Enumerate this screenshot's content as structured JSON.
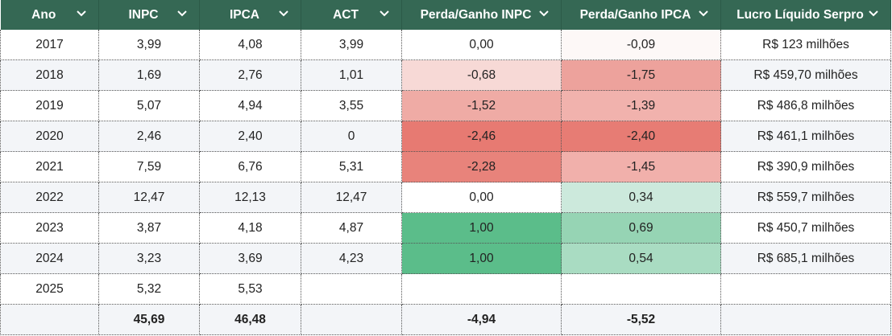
{
  "headers": [
    "Ano",
    "INPC",
    "IPCA",
    "ACT",
    "Perda/Ganho INPC",
    "Perda/Ganho IPCA",
    "Lucro Líquido Serpro"
  ],
  "rows": [
    {
      "cells": [
        "2017",
        "3,99",
        "4,08",
        "3,99",
        "0,00",
        "-0,09",
        "R$ 123 milhões"
      ],
      "colors": [
        "",
        "",
        "",
        "",
        "",
        "#fdf8f7",
        ""
      ]
    },
    {
      "cells": [
        "2018",
        "1,69",
        "2,76",
        "1,01",
        "-0,68",
        "-1,75",
        "R$ 459,70 milhões"
      ],
      "colors": [
        "",
        "",
        "",
        "",
        "#f7d9d6",
        "#eda29c",
        ""
      ]
    },
    {
      "cells": [
        "2019",
        "5,07",
        "4,94",
        "3,55",
        "-1,52",
        "-1,39",
        "R$ 486,8 milhões"
      ],
      "colors": [
        "",
        "",
        "",
        "",
        "#efaba5",
        "#f1b2ad",
        ""
      ]
    },
    {
      "cells": [
        "2020",
        "2,46",
        "2,40",
        "0",
        "-2,46",
        "-2,40",
        "R$ 461,1 milhões"
      ],
      "colors": [
        "",
        "",
        "",
        "",
        "#e77a72",
        "#e77c74",
        ""
      ]
    },
    {
      "cells": [
        "2021",
        "7,59",
        "6,76",
        "5,31",
        "-2,28",
        "-1,45",
        "R$ 390,9 milhões"
      ],
      "colors": [
        "",
        "",
        "",
        "",
        "#e8837b",
        "#f1b0ab",
        ""
      ]
    },
    {
      "cells": [
        "2022",
        "12,47",
        "12,13",
        "12,47",
        "0,00",
        "0,34",
        "R$ 559,7 milhões"
      ],
      "colors": [
        "",
        "",
        "",
        "",
        "#ffffff",
        "#cce9dc",
        ""
      ]
    },
    {
      "cells": [
        "2023",
        "3,87",
        "4,18",
        "4,87",
        "1,00",
        "0,69",
        "R$ 450,7 milhões"
      ],
      "colors": [
        "",
        "",
        "",
        "",
        "#5bbd8a",
        "#96d4b4",
        ""
      ]
    },
    {
      "cells": [
        "2024",
        "3,23",
        "3,69",
        "4,23",
        "1,00",
        "0,54",
        "R$ 685,1 milhões"
      ],
      "colors": [
        "",
        "",
        "",
        "",
        "#5bbd8a",
        "#a9dcc2",
        ""
      ]
    },
    {
      "cells": [
        "2025",
        "5,32",
        "5,53",
        "",
        "",
        "",
        ""
      ],
      "colors": [
        "",
        "",
        "",
        "",
        "",
        "",
        ""
      ]
    },
    {
      "cells": [
        "",
        "45,69",
        "46,48",
        "",
        "-4,94",
        "-5,52",
        ""
      ],
      "colors": [
        "",
        "",
        "",
        "",
        "",
        "",
        ""
      ],
      "total": true
    }
  ],
  "colors": {
    "header_bg": "#356854",
    "header_text": "#ffffff"
  },
  "icons": {
    "sort": "chevron-down-icon"
  }
}
